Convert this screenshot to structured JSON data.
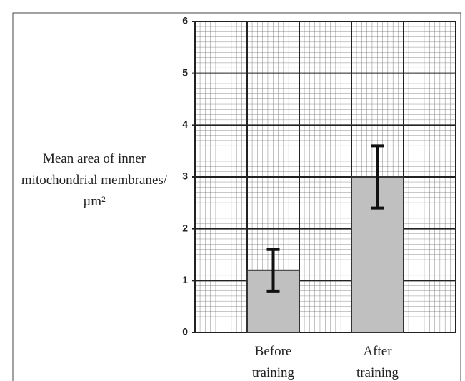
{
  "chart_data": {
    "type": "bar",
    "y_label": "Mean area of inner mitochondrial membranes/µm²",
    "categories": [
      null,
      "Before training",
      null,
      "After training",
      null
    ],
    "values": [
      null,
      1.2,
      null,
      3.0,
      null
    ],
    "errors": [
      null,
      0.4,
      null,
      0.6,
      null
    ],
    "color": "#c0c0c0",
    "ylim": [
      0,
      6
    ],
    "yticks": [
      0,
      1,
      2,
      3,
      4,
      5,
      6
    ],
    "grid": true
  }
}
